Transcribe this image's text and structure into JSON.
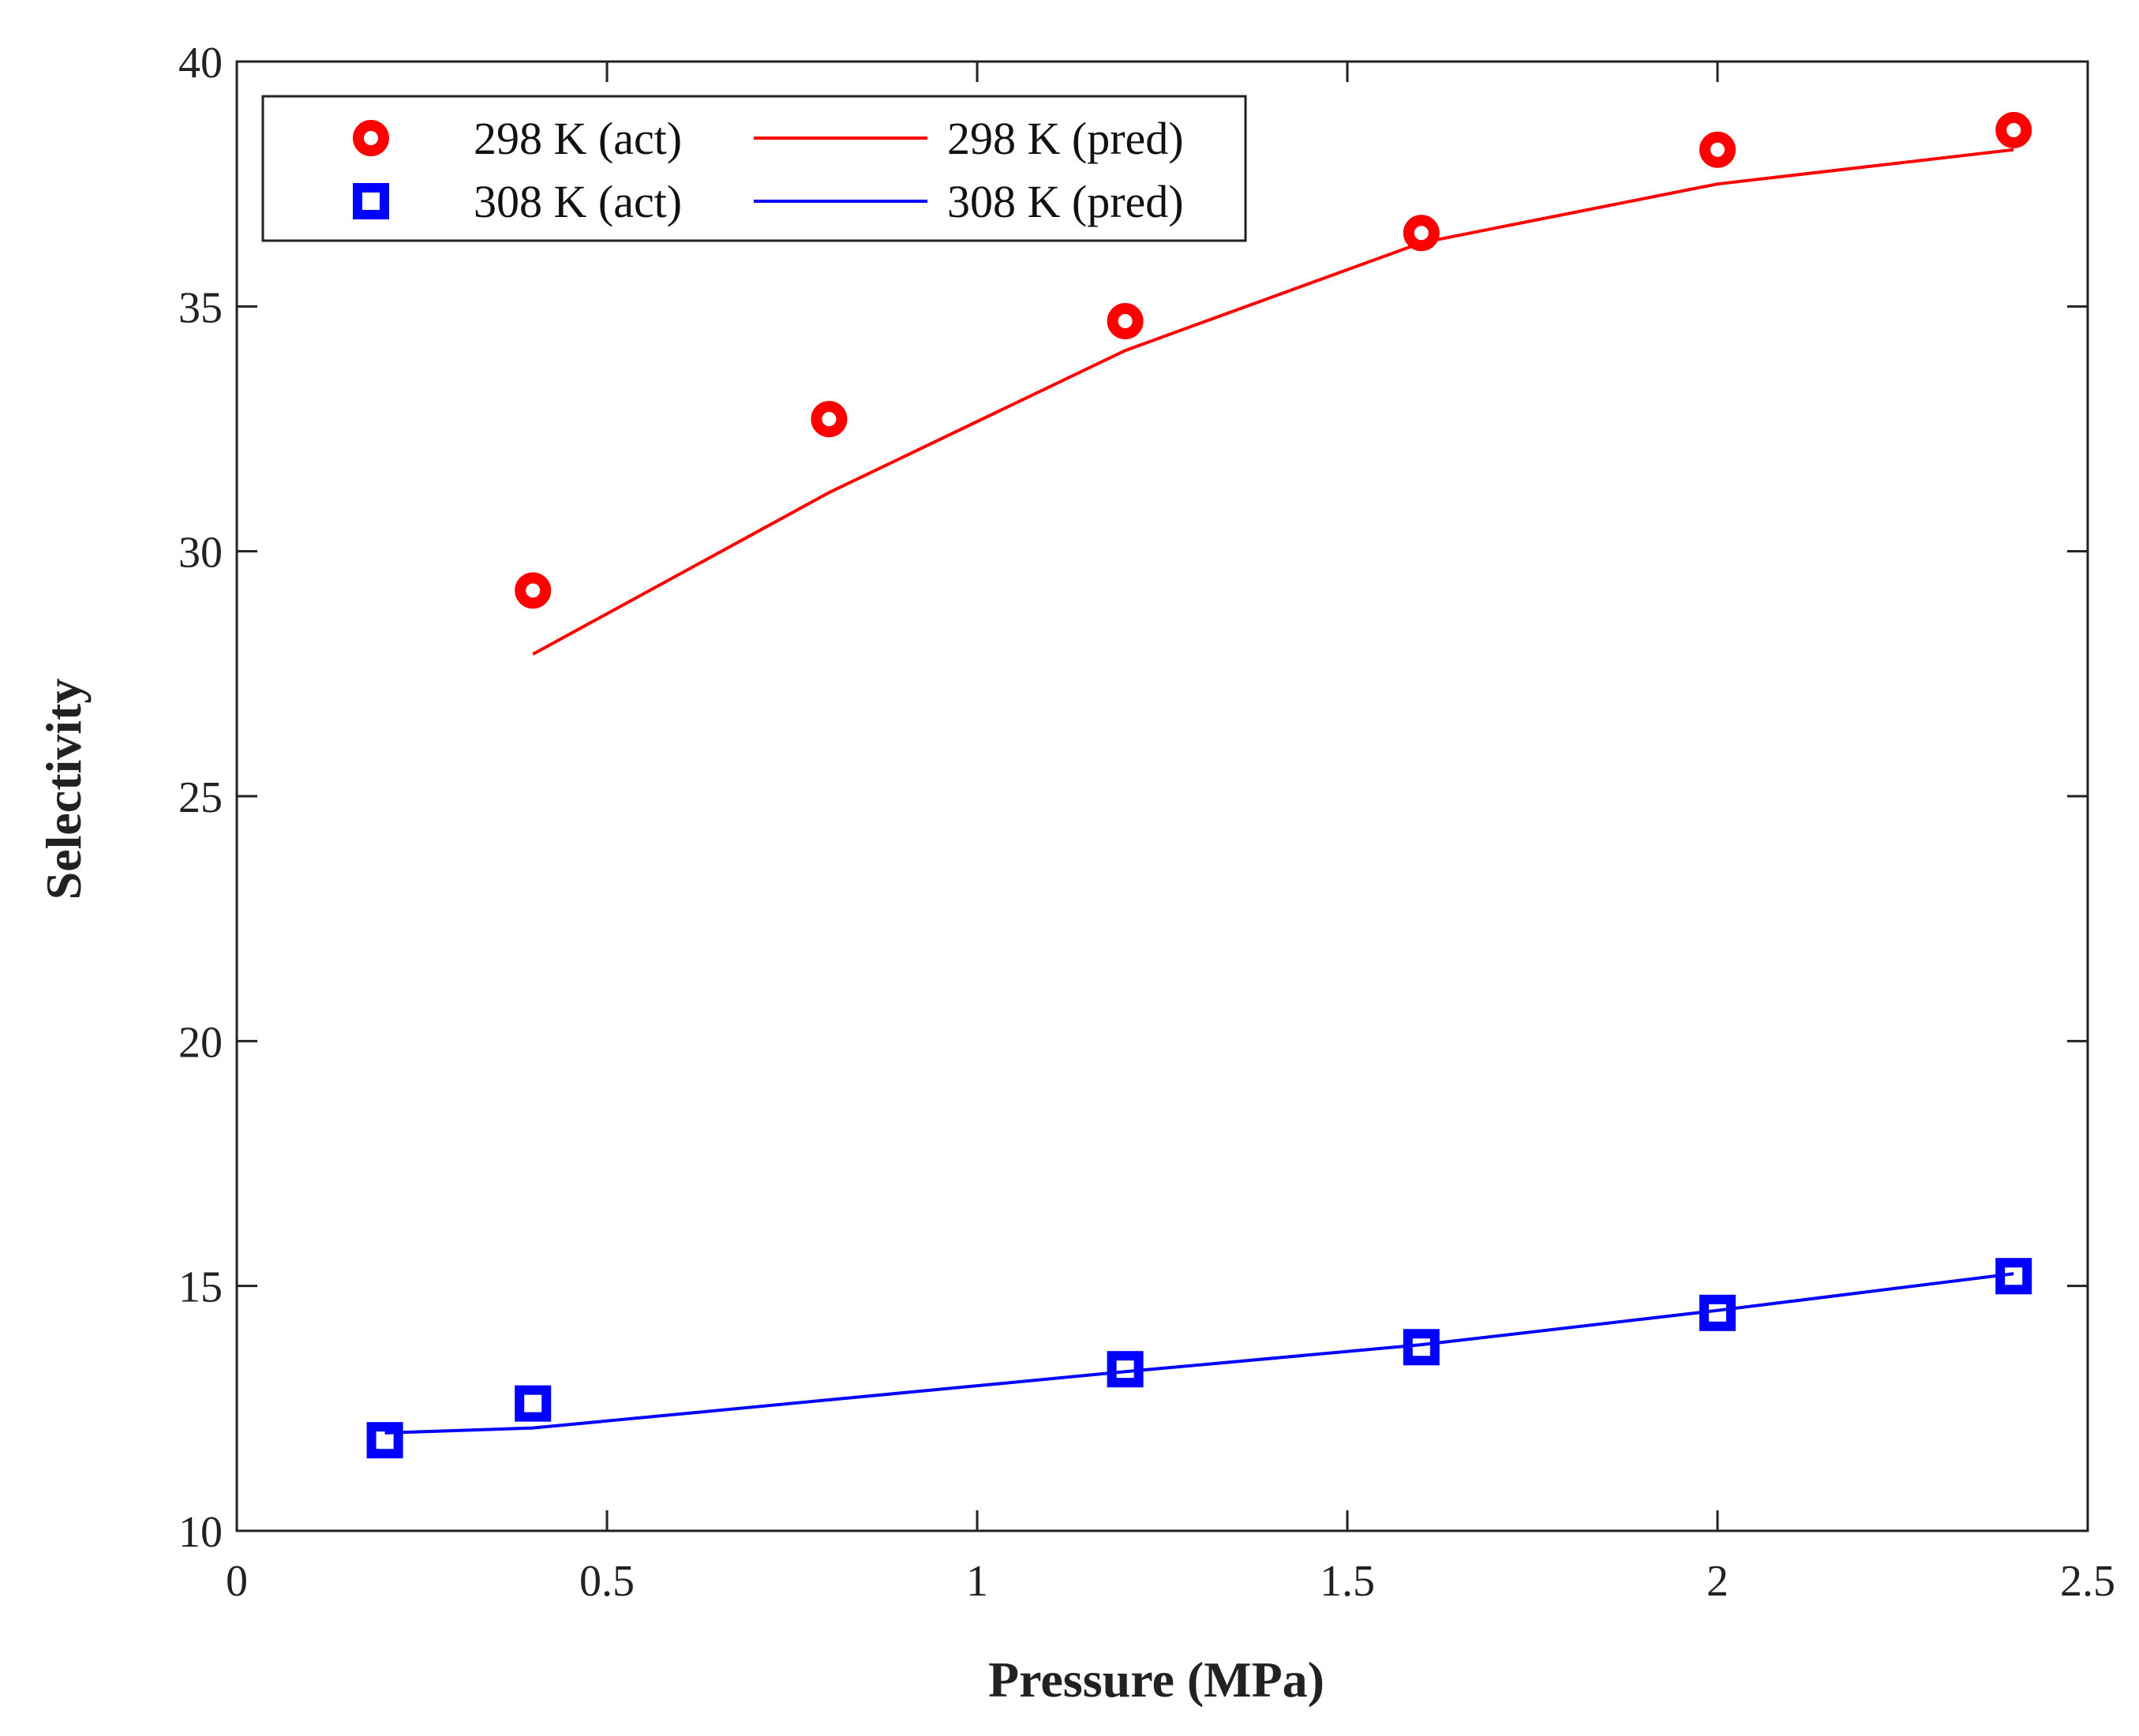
{
  "chart_data": {
    "type": "line",
    "title": "",
    "xlabel": "Pressure (MPa)",
    "ylabel": "Selectivity",
    "xlim": [
      0,
      2.5
    ],
    "ylim": [
      10,
      40
    ],
    "xticks": [
      0,
      0.5,
      1,
      1.5,
      2,
      2.5
    ],
    "xtick_labels": [
      "0",
      "0.5",
      "1",
      "1.5",
      "2",
      "2.5"
    ],
    "yticks": [
      10,
      15,
      20,
      25,
      30,
      35,
      40
    ],
    "ytick_labels": [
      "10",
      "15",
      "20",
      "25",
      "30",
      "35",
      "40"
    ],
    "grid": false,
    "legend_position": "top-left",
    "series": [
      {
        "name": "298 K (act)",
        "kind": "scatter",
        "marker": "circle",
        "color": "#ff0000",
        "x": [
          0.4,
          0.8,
          1.2,
          1.6,
          2.0,
          2.4
        ],
        "y": [
          29.2,
          32.7,
          34.7,
          36.5,
          38.2,
          38.6
        ]
      },
      {
        "name": "298 K (pred)",
        "kind": "line",
        "color": "#ff0000",
        "x": [
          0.4,
          0.8,
          1.2,
          1.6,
          2.0,
          2.4
        ],
        "y": [
          27.9,
          31.2,
          34.1,
          36.3,
          37.5,
          38.2
        ]
      },
      {
        "name": "308 K (act)",
        "kind": "scatter",
        "marker": "square",
        "color": "#0000ff",
        "x": [
          0.2,
          0.4,
          1.2,
          1.6,
          2.0,
          2.4
        ],
        "y": [
          11.85,
          12.6,
          13.3,
          13.75,
          14.45,
          15.2
        ]
      },
      {
        "name": "308 K (pred)",
        "kind": "line",
        "color": "#0000ff",
        "x": [
          0.2,
          0.4,
          1.2,
          1.6,
          2.0,
          2.4
        ],
        "y": [
          12.0,
          12.1,
          13.25,
          13.8,
          14.5,
          15.25
        ]
      }
    ]
  }
}
